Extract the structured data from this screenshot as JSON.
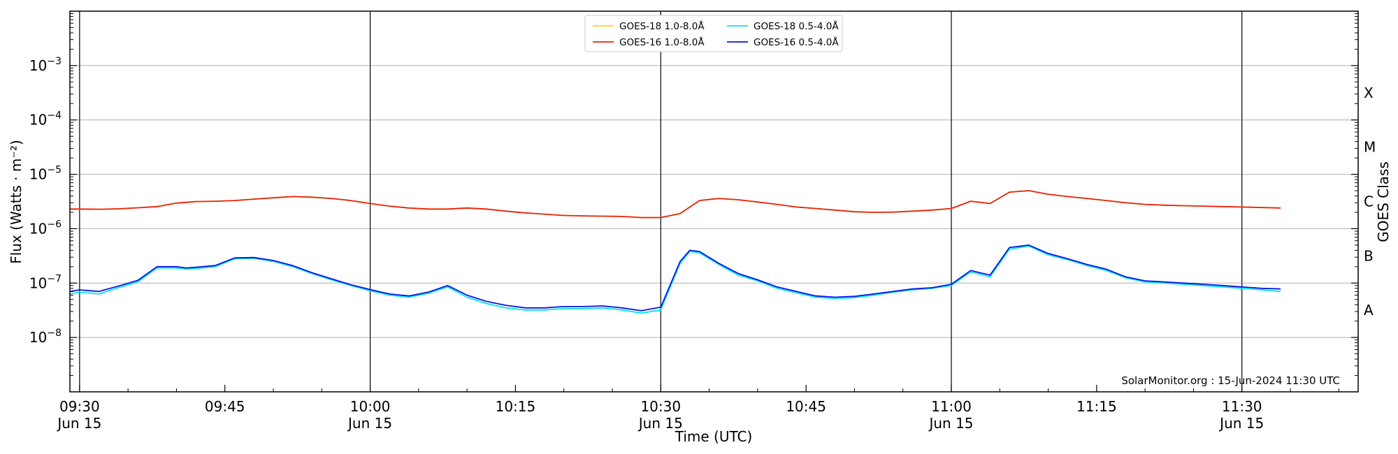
{
  "chart_data": {
    "type": "line",
    "title": "",
    "xlabel": "Time (UTC)",
    "ylabel": "Flux (Watts · m⁻²)",
    "y2label": "GOES Class",
    "yscale": "log",
    "ylim": [
      1e-09,
      0.01
    ],
    "xlim_minutes": [
      -1,
      132
    ],
    "grid": "horizontal",
    "legend_position": "top-center",
    "watermark": "SolarMonitor.org : 15-Jun-2024 11:30 UTC",
    "x_ticks": [
      {
        "min": 0,
        "label": "09:30",
        "sub": "Jun 15"
      },
      {
        "min": 15,
        "label": "09:45",
        "sub": ""
      },
      {
        "min": 30,
        "label": "10:00",
        "sub": "Jun 15"
      },
      {
        "min": 45,
        "label": "10:15",
        "sub": ""
      },
      {
        "min": 60,
        "label": "10:30",
        "sub": "Jun 15"
      },
      {
        "min": 75,
        "label": "10:45",
        "sub": ""
      },
      {
        "min": 90,
        "label": "11:00",
        "sub": "Jun 15"
      },
      {
        "min": 105,
        "label": "11:15",
        "sub": ""
      },
      {
        "min": 120,
        "label": "11:30",
        "sub": "Jun 15"
      }
    ],
    "y_ticks": [
      {
        "exp": -8,
        "label": "10",
        "sup": "−8"
      },
      {
        "exp": -7,
        "label": "10",
        "sup": "−7"
      },
      {
        "exp": -6,
        "label": "10",
        "sup": "−6"
      },
      {
        "exp": -5,
        "label": "10",
        "sup": "−5"
      },
      {
        "exp": -4,
        "label": "10",
        "sup": "−4"
      },
      {
        "exp": -3,
        "label": "10",
        "sup": "−3"
      }
    ],
    "goes_classes": [
      {
        "label": "A",
        "exp": -7.5
      },
      {
        "label": "B",
        "exp": -6.5
      },
      {
        "label": "C",
        "exp": -5.5
      },
      {
        "label": "M",
        "exp": -4.5
      },
      {
        "label": "X",
        "exp": -3.5
      }
    ],
    "day_boundaries_min": [
      0,
      30,
      60,
      90,
      120
    ],
    "legend": [
      {
        "label": "GOES-18 1.0-8.0Å",
        "color": "#ffd700"
      },
      {
        "label": "GOES-16 1.0-8.0Å",
        "color": "#e8230f"
      },
      {
        "label": "GOES-18 0.5-4.0Å",
        "color": "#00e5ff"
      },
      {
        "label": "GOES-16 0.5-4.0Å",
        "color": "#0a14e6"
      }
    ],
    "series": [
      {
        "name": "GOES-18 1.0-8.0Å",
        "color": "#ffd700",
        "x": [
          -1,
          0,
          2,
          4,
          6,
          8,
          10,
          11,
          12,
          14,
          16,
          18,
          20,
          22,
          24,
          26,
          28,
          30,
          32,
          34,
          36,
          38,
          40,
          42,
          44,
          46,
          48,
          50,
          52,
          54,
          56,
          58,
          60,
          62,
          63,
          64,
          66,
          68,
          70,
          72,
          74,
          76,
          78,
          80,
          82,
          84,
          86,
          88,
          90,
          92,
          94,
          96,
          98,
          100,
          102,
          104,
          106,
          108,
          110,
          112,
          114,
          116,
          118,
          120,
          122,
          124
        ],
        "y": [
          2.3e-06,
          2.3e-06,
          2.28e-06,
          2.32e-06,
          2.42e-06,
          2.55e-06,
          2.95e-06,
          3.05e-06,
          3.15e-06,
          3.2e-06,
          3.3e-06,
          3.5e-06,
          3.7e-06,
          3.9e-06,
          3.8e-06,
          3.6e-06,
          3.3e-06,
          2.9e-06,
          2.6e-06,
          2.4e-06,
          2.3e-06,
          2.3e-06,
          2.4e-06,
          2.3e-06,
          2.1e-06,
          1.95e-06,
          1.85e-06,
          1.75e-06,
          1.72e-06,
          1.7e-06,
          1.68e-06,
          1.6e-06,
          1.6e-06,
          1.9e-06,
          2.5e-06,
          3.3e-06,
          3.6e-06,
          3.4e-06,
          3.1e-06,
          2.8e-06,
          2.5e-06,
          2.35e-06,
          2.2e-06,
          2.05e-06,
          2e-06,
          2.02e-06,
          2.1e-06,
          2.2e-06,
          2.35e-06,
          3.2e-06,
          2.9e-06,
          4.7e-06,
          5e-06,
          4.3e-06,
          3.9e-06,
          3.6e-06,
          3.3e-06,
          3e-06,
          2.8e-06,
          2.7e-06,
          2.65e-06,
          2.6e-06,
          2.55e-06,
          2.5e-06,
          2.45e-06,
          2.4e-06
        ]
      },
      {
        "name": "GOES-16 1.0-8.0Å",
        "color": "#e8230f",
        "x": [
          -1,
          0,
          2,
          4,
          6,
          8,
          10,
          11,
          12,
          14,
          16,
          18,
          20,
          22,
          24,
          26,
          28,
          30,
          32,
          34,
          36,
          38,
          40,
          42,
          44,
          46,
          48,
          50,
          52,
          54,
          56,
          58,
          60,
          62,
          63,
          64,
          66,
          68,
          70,
          72,
          74,
          76,
          78,
          80,
          82,
          84,
          86,
          88,
          90,
          92,
          94,
          96,
          98,
          100,
          102,
          104,
          106,
          108,
          110,
          112,
          114,
          116,
          118,
          120,
          122,
          124
        ],
        "y": [
          2.3e-06,
          2.3e-06,
          2.28e-06,
          2.32e-06,
          2.42e-06,
          2.55e-06,
          2.95e-06,
          3.05e-06,
          3.15e-06,
          3.2e-06,
          3.3e-06,
          3.5e-06,
          3.7e-06,
          3.9e-06,
          3.8e-06,
          3.6e-06,
          3.3e-06,
          2.9e-06,
          2.6e-06,
          2.4e-06,
          2.3e-06,
          2.3e-06,
          2.4e-06,
          2.3e-06,
          2.1e-06,
          1.95e-06,
          1.85e-06,
          1.75e-06,
          1.72e-06,
          1.7e-06,
          1.68e-06,
          1.6e-06,
          1.6e-06,
          1.9e-06,
          2.5e-06,
          3.3e-06,
          3.6e-06,
          3.4e-06,
          3.1e-06,
          2.8e-06,
          2.5e-06,
          2.35e-06,
          2.2e-06,
          2.05e-06,
          2e-06,
          2.02e-06,
          2.1e-06,
          2.2e-06,
          2.35e-06,
          3.2e-06,
          2.9e-06,
          4.7e-06,
          5e-06,
          4.3e-06,
          3.9e-06,
          3.6e-06,
          3.3e-06,
          3e-06,
          2.8e-06,
          2.7e-06,
          2.65e-06,
          2.6e-06,
          2.55e-06,
          2.5e-06,
          2.45e-06,
          2.4e-06
        ]
      },
      {
        "name": "GOES-18 0.5-4.0Å",
        "color": "#00e5ff",
        "x": [
          -1,
          0,
          2,
          4,
          6,
          8,
          10,
          11,
          12,
          14,
          16,
          18,
          20,
          22,
          24,
          26,
          28,
          30,
          32,
          34,
          36,
          38,
          40,
          42,
          44,
          46,
          48,
          50,
          52,
          54,
          56,
          58,
          60,
          62,
          63,
          64,
          66,
          68,
          70,
          72,
          74,
          76,
          78,
          80,
          82,
          84,
          86,
          88,
          90,
          92,
          94,
          96,
          98,
          100,
          102,
          104,
          106,
          108,
          110,
          112,
          114,
          116,
          118,
          120,
          122,
          124
        ],
        "y": [
          6.3e-08,
          6.8e-08,
          6.3e-08,
          8.2e-08,
          1.05e-07,
          1.9e-07,
          1.9e-07,
          1.8e-07,
          1.85e-07,
          2e-07,
          2.8e-07,
          2.85e-07,
          2.5e-07,
          2e-07,
          1.5e-07,
          1.15e-07,
          9e-08,
          7.2e-08,
          6e-08,
          5.5e-08,
          6.5e-08,
          8.5e-08,
          5.5e-08,
          4.2e-08,
          3.5e-08,
          3.2e-08,
          3.2e-08,
          3.4e-08,
          3.4e-08,
          3.5e-08,
          3.2e-08,
          2.8e-08,
          3.2e-08,
          2.3e-07,
          3.8e-07,
          3.6e-07,
          2.2e-07,
          1.4e-07,
          1.1e-07,
          8e-08,
          6.6e-08,
          5.5e-08,
          5.2e-08,
          5.4e-08,
          6e-08,
          6.8e-08,
          7.5e-08,
          8e-08,
          9e-08,
          1.6e-07,
          1.3e-07,
          4.2e-07,
          4.8e-07,
          3.3e-07,
          2.7e-07,
          2.1e-07,
          1.7e-07,
          1.25e-07,
          1.05e-07,
          1e-07,
          9.5e-08,
          9e-08,
          8.5e-08,
          8e-08,
          7.5e-08,
          7e-08
        ]
      },
      {
        "name": "GOES-16 0.5-4.0Å",
        "color": "#0a14e6",
        "x": [
          -1,
          0,
          2,
          4,
          6,
          8,
          10,
          11,
          12,
          14,
          16,
          18,
          20,
          22,
          24,
          26,
          28,
          30,
          32,
          34,
          36,
          38,
          40,
          42,
          44,
          46,
          48,
          50,
          52,
          54,
          56,
          58,
          60,
          62,
          63,
          64,
          66,
          68,
          70,
          72,
          74,
          76,
          78,
          80,
          82,
          84,
          86,
          88,
          90,
          92,
          94,
          96,
          98,
          100,
          102,
          104,
          106,
          108,
          110,
          112,
          114,
          116,
          118,
          120,
          122,
          124
        ],
        "y": [
          7e-08,
          7.5e-08,
          7e-08,
          8.8e-08,
          1.12e-07,
          2e-07,
          2e-07,
          1.9e-07,
          1.95e-07,
          2.1e-07,
          2.9e-07,
          2.95e-07,
          2.6e-07,
          2.1e-07,
          1.55e-07,
          1.2e-07,
          9.3e-08,
          7.6e-08,
          6.3e-08,
          5.8e-08,
          6.8e-08,
          9e-08,
          6e-08,
          4.6e-08,
          3.9e-08,
          3.5e-08,
          3.5e-08,
          3.7e-08,
          3.7e-08,
          3.8e-08,
          3.5e-08,
          3.1e-08,
          3.6e-08,
          2.5e-07,
          4e-07,
          3.8e-07,
          2.3e-07,
          1.5e-07,
          1.15e-07,
          8.5e-08,
          7e-08,
          5.8e-08,
          5.5e-08,
          5.7e-08,
          6.3e-08,
          7e-08,
          7.8e-08,
          8.2e-08,
          9.5e-08,
          1.7e-07,
          1.4e-07,
          4.5e-07,
          5e-07,
          3.5e-07,
          2.8e-07,
          2.2e-07,
          1.8e-07,
          1.3e-07,
          1.1e-07,
          1.05e-07,
          1e-07,
          9.5e-08,
          9e-08,
          8.5e-08,
          8e-08,
          7.8e-08
        ]
      }
    ]
  }
}
